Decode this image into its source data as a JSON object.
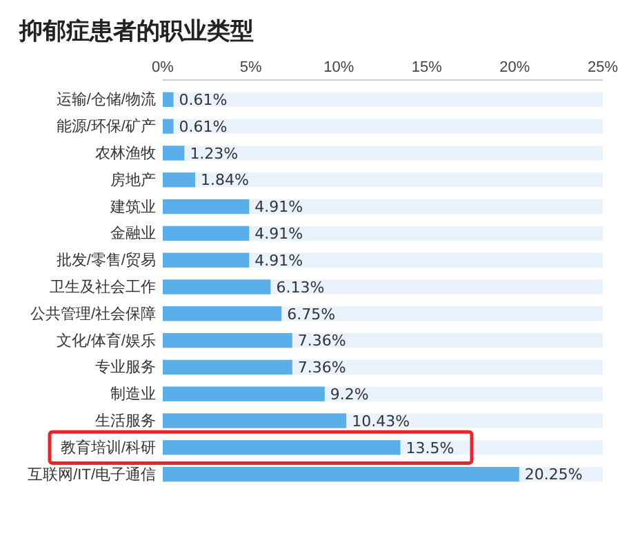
{
  "chart_data": {
    "type": "bar",
    "orientation": "horizontal",
    "title": "抑郁症患者的职业类型",
    "categories": [
      "运输/仓储/物流",
      "能源/环保/矿产",
      "农林渔牧",
      "房地产",
      "建筑业",
      "金融业",
      "批发/零售/贸易",
      "卫生及社会工作",
      "公共管理/社会保障",
      "文化/体育/娱乐",
      "专业服务",
      "制造业",
      "生活服务",
      "教育培训/科研",
      "互联网/IT/电子通信"
    ],
    "values": [
      0.61,
      0.61,
      1.23,
      1.84,
      4.91,
      4.91,
      4.91,
      6.13,
      6.75,
      7.36,
      7.36,
      9.2,
      10.43,
      13.5,
      20.25
    ],
    "value_labels": [
      "0.61%",
      "0.61%",
      "1.23%",
      "1.84%",
      "4.91%",
      "4.91%",
      "4.91%",
      "6.13%",
      "6.75%",
      "7.36%",
      "7.36%",
      "9.2%",
      "10.43%",
      "13.5%",
      "20.25%"
    ],
    "color": "#5aaee9",
    "xlim": [
      0,
      25
    ],
    "xticks": [
      {
        "value": 0,
        "label": "0%"
      },
      {
        "value": 5,
        "label": "5%"
      },
      {
        "value": 10,
        "label": "10%"
      },
      {
        "value": 15,
        "label": "15%"
      },
      {
        "value": 20,
        "label": "20%"
      },
      {
        "value": 25,
        "label": "25%"
      }
    ],
    "grid": false
  }
}
